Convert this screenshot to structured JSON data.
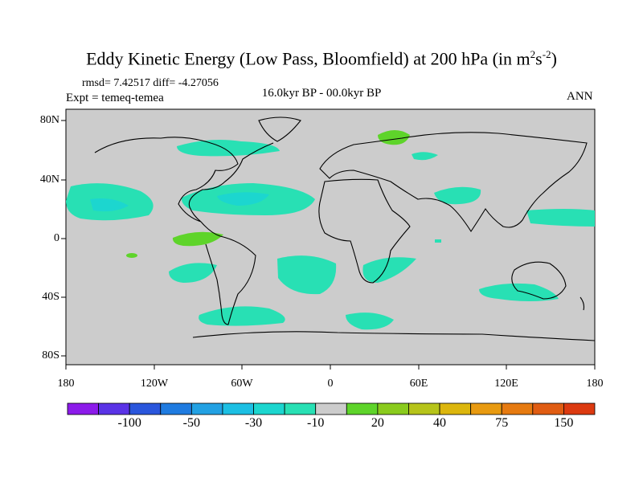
{
  "title": {
    "main": "Eddy Kinetic Energy (Low Pass, Bloomfield) at 200 hPa (in m",
    "sup1": "2",
    "mid": "s",
    "sup2": "-2",
    "end": ")"
  },
  "stats_text": "rmsd= 7.42517 diff= -4.27056",
  "expt_text": "Expt = temeq-temea",
  "period_text": "16.0kyr BP - 00.0kyr BP",
  "season_text": "ANN",
  "y_ticks": [
    "80N",
    "40N",
    "0",
    "40S",
    "80S"
  ],
  "x_ticks": [
    "180",
    "120W",
    "60W",
    "0",
    "60E",
    "120E",
    "180"
  ],
  "colorbar": {
    "labels": [
      "-100",
      "-50",
      "-30",
      "-10",
      "20",
      "40",
      "75",
      "150"
    ],
    "colors": [
      "#8c1bea",
      "#5a33e6",
      "#2a56dc",
      "#1f7be0",
      "#22a1e3",
      "#1cbfe3",
      "#1cd6cf",
      "#28e0b4",
      "#cccccc",
      "#5ed42a",
      "#8acb1d",
      "#b6c41a",
      "#dcb60d",
      "#e89a10",
      "#e67a10",
      "#e05c12",
      "#dc3a10"
    ]
  },
  "map_colors": {
    "ocean_land": "#cccccc",
    "neg10_30": "#28e0b4",
    "neg30_50": "#1cd6cf",
    "pos10_20": "#5ed42a"
  }
}
